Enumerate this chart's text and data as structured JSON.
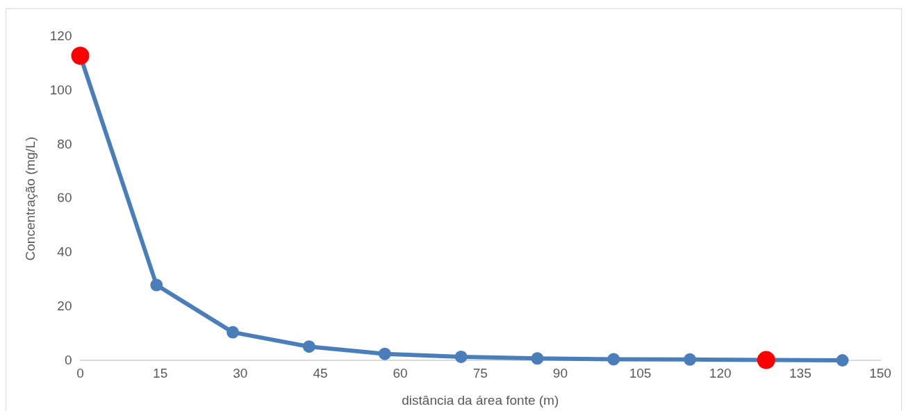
{
  "chart_data": {
    "type": "line",
    "xlabel": "distância da área fonte (m)",
    "ylabel": "Concentração (mg/L)",
    "x": [
      0,
      14.3,
      28.6,
      42.9,
      57.1,
      71.4,
      85.7,
      100,
      114.3,
      128.6,
      142.9
    ],
    "series": [
      {
        "color": "#4a7ebb",
        "colors": [
          "#ff0000",
          "#4a7ebb",
          "#4a7ebb",
          "#4a7ebb",
          "#4a7ebb",
          "#4a7ebb",
          "#4a7ebb",
          "#4a7ebb",
          "#4a7ebb",
          "#ff0000",
          "#4a7ebb"
        ],
        "values": [
          113,
          28,
          10.5,
          5.2,
          2.5,
          1.4,
          0.8,
          0.5,
          0.4,
          0.2,
          0.1
        ]
      }
    ],
    "xlim": [
      0,
      150
    ],
    "xticks": [
      0,
      15,
      30,
      45,
      60,
      75,
      90,
      105,
      120,
      135,
      150
    ],
    "ylim": [
      0,
      120
    ],
    "yticks": [
      0,
      20,
      40,
      60,
      80,
      100,
      120
    ],
    "grid": false,
    "legend": false,
    "marker": "circle",
    "line_style": "solid"
  }
}
